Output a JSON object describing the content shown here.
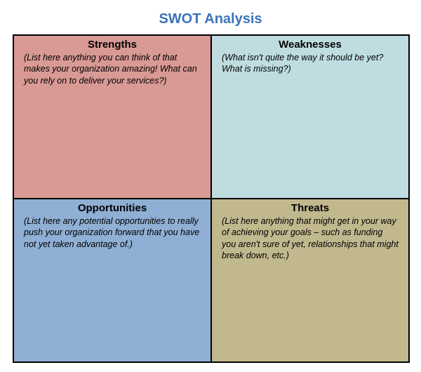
{
  "title": "SWOT Analysis",
  "title_color": "#3b73b9",
  "title_fontsize": 20,
  "grid": {
    "border_color": "#000000",
    "columns": 2,
    "rows": 2
  },
  "quadrants": {
    "strengths": {
      "heading": "Strengths",
      "body": "(List here anything you can think of that makes your organization  amazing!  What can you rely on to deliver your services?)",
      "background_color": "#d99a95"
    },
    "weaknesses": {
      "heading": "Weaknesses",
      "body": "(What isn't quite the way it should be yet?  What is missing?)",
      "background_color": "#bfdde1"
    },
    "opportunities": {
      "heading": "Opportunities",
      "body": "(List here any potential  opportunities  to really  push your organization  forward that you have not yet taken advantage  of.)",
      "background_color": "#8fafd4"
    },
    "threats": {
      "heading": "Threats",
      "body": "(List here anything that might get in your way of achieving your goals – such as funding you aren't sure of yet, relationships  that might break down, etc.)",
      "background_color": "#c2b88e"
    }
  },
  "typography": {
    "heading_fontsize": 15,
    "heading_weight": "bold",
    "body_fontsize": 12.5,
    "body_style": "italic",
    "font_family": "Arial"
  }
}
